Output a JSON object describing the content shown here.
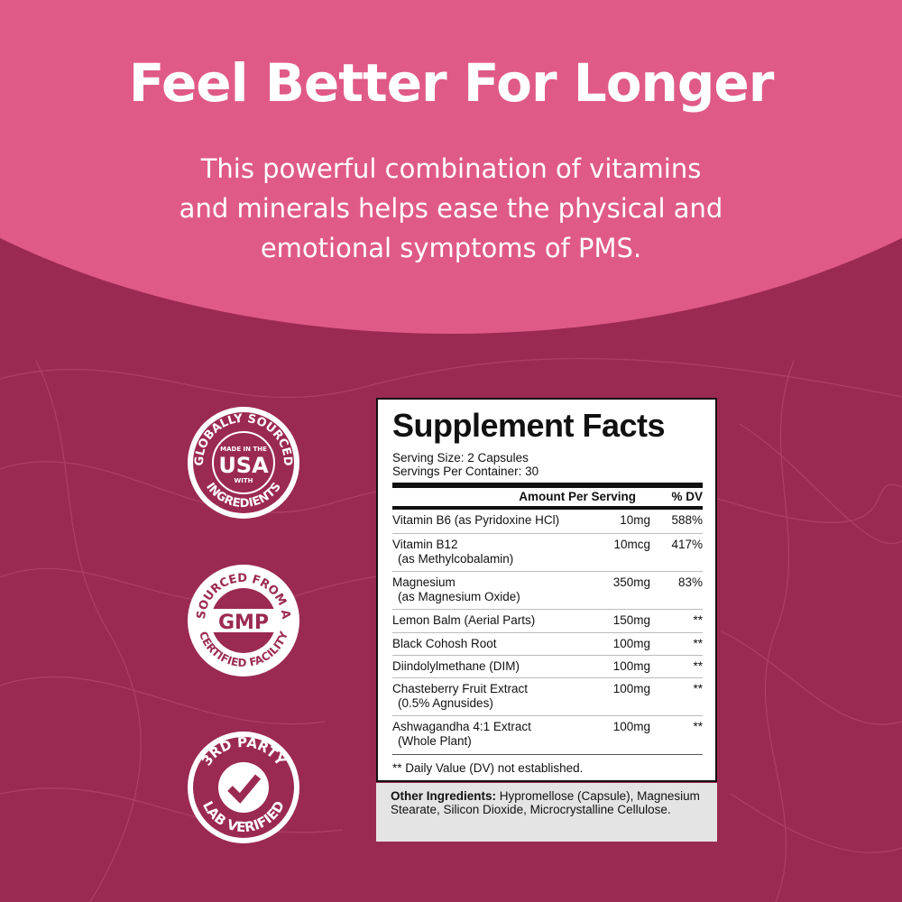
{
  "colors": {
    "pink": "#e05a87",
    "burgundy": "#9b2a52"
  },
  "headline": "Feel Better For Longer",
  "subtext_lines": [
    "This powerful combination of vitamins",
    "and minerals helps ease the physical and",
    "emotional symptoms of PMS."
  ],
  "badges": [
    {
      "top": "GLOBALLY SOURCED",
      "small1": "MADE IN THE",
      "center": "USA",
      "small2": "WITH",
      "bottom": "INGREDIENTS"
    },
    {
      "top": "SOURCED FROM A",
      "center": "GMP",
      "bottom": "CERTIFIED FACILITY"
    },
    {
      "top": "3RD PARTY",
      "icon": "checkmark-icon",
      "bottom": "LAB VERIFIED"
    }
  ],
  "facts": {
    "title": "Supplement Facts",
    "serving_size": "Serving Size: 2 Capsules",
    "servings_per_container": "Servings Per Container: 30",
    "col_amount": "Amount Per Serving",
    "col_dv": "% DV",
    "rows": [
      {
        "name": "Vitamin B6 (as Pyridoxine HCl)",
        "sub": "",
        "amount": "10mg",
        "dv": "588%"
      },
      {
        "name": "Vitamin B12",
        "sub": "(as Methylcobalamin)",
        "amount": "10mcg",
        "dv": "417%"
      },
      {
        "name": "Magnesium",
        "sub": "(as Magnesium Oxide)",
        "amount": "350mg",
        "dv": "83%"
      },
      {
        "name": "Lemon Balm (Aerial Parts)",
        "sub": "",
        "amount": "150mg",
        "dv": "**"
      },
      {
        "name": "Black Cohosh Root",
        "sub": "",
        "amount": "100mg",
        "dv": "**"
      },
      {
        "name": "Diindolylmethane (DIM)",
        "sub": "",
        "amount": "100mg",
        "dv": "**"
      },
      {
        "name": "Chasteberry Fruit Extract",
        "sub": "(0.5% Agnusides)",
        "amount": "100mg",
        "dv": "**"
      },
      {
        "name": "Ashwagandha 4:1 Extract",
        "sub": "(Whole Plant)",
        "amount": "100mg",
        "dv": "**"
      }
    ],
    "footnote": "** Daily Value (DV) not established.",
    "other_label": "Other Ingredients:",
    "other_text": "Hypromellose (Capsule), Magnesium Stearate, Silicon Dioxide, Microcrystalline Cellulose."
  }
}
